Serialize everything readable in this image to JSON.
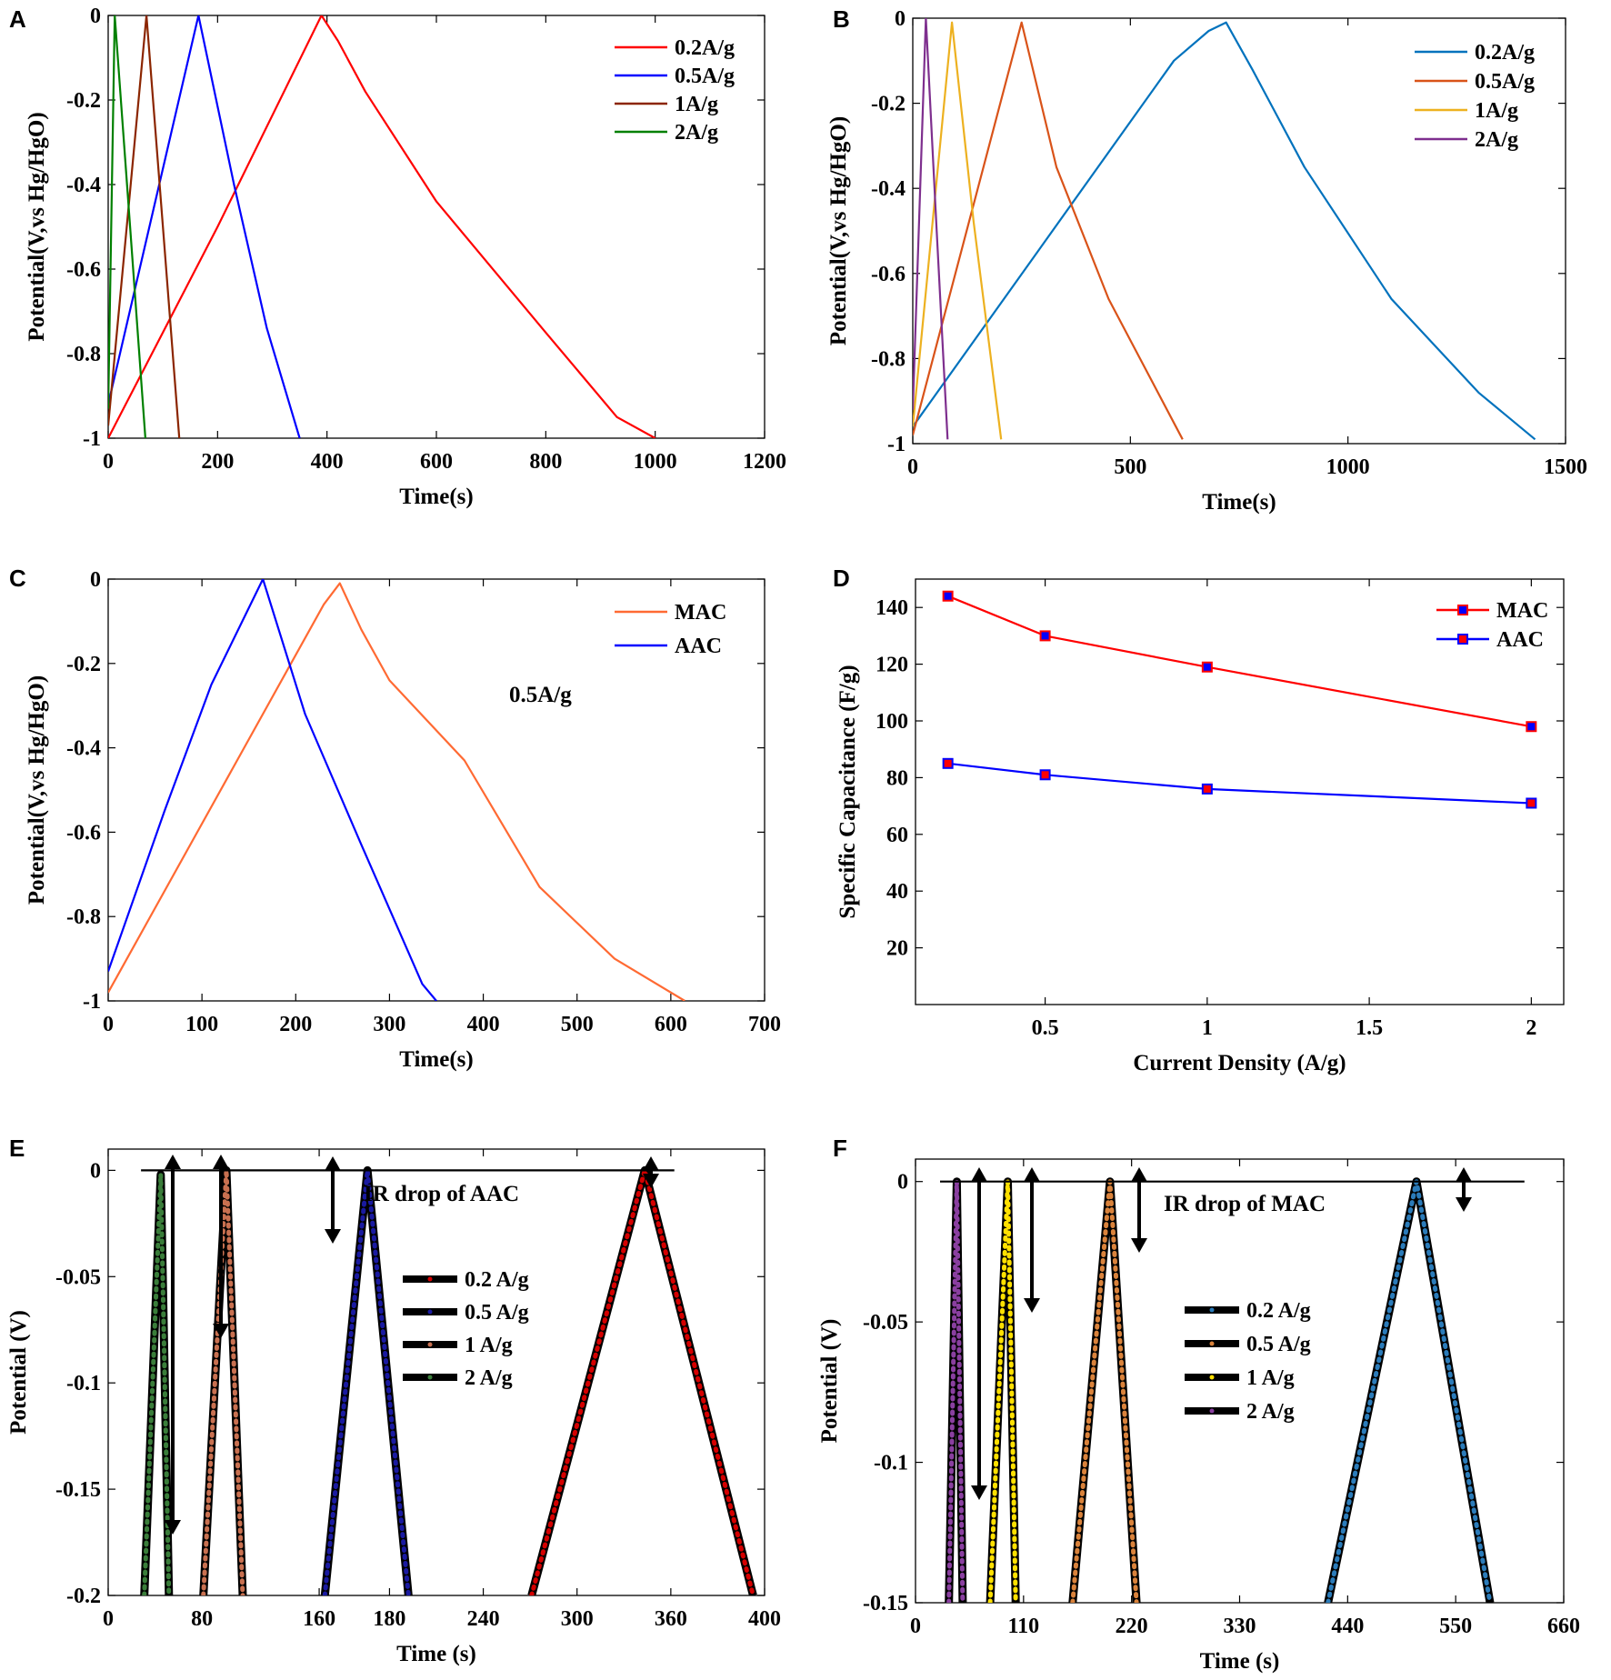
{
  "chart_data": [
    {
      "panel": "A",
      "type": "line",
      "xlabel": "Time(s)",
      "ylabel": "Potential(V,vs Hg/HgO)",
      "xlim": [
        0,
        1200
      ],
      "ylim": [
        -1,
        0
      ],
      "xticks": [
        0,
        200,
        400,
        600,
        800,
        1000,
        1200
      ],
      "yticks": [
        0,
        -0.2,
        -0.4,
        -0.6,
        -0.8,
        -1
      ],
      "xtick_labels": [
        "0",
        "200",
        "400",
        "600",
        "800",
        "1000",
        "1200"
      ],
      "ytick_labels": [
        "0",
        "-0.2",
        "-0.4",
        "-0.6",
        "-0.8",
        "-1"
      ],
      "legend_position": "top-right",
      "series": [
        {
          "name": "0.2A/g",
          "color": "#ff0000",
          "points": [
            [
              0,
              -1
            ],
            [
              200,
              -0.5
            ],
            [
              390,
              0
            ],
            [
              420,
              -0.06
            ],
            [
              470,
              -0.18
            ],
            [
              600,
              -0.44
            ],
            [
              800,
              -0.75
            ],
            [
              930,
              -0.95
            ],
            [
              1000,
              -1
            ]
          ]
        },
        {
          "name": "0.5A/g",
          "color": "#0000ff",
          "points": [
            [
              0,
              -0.92
            ],
            [
              165,
              0
            ],
            [
              230,
              -0.4
            ],
            [
              290,
              -0.74
            ],
            [
              350,
              -1
            ]
          ]
        },
        {
          "name": "1A/g",
          "color": "#8b2500",
          "points": [
            [
              0,
              -0.97
            ],
            [
              70,
              0
            ],
            [
              100,
              -0.5
            ],
            [
              130,
              -1
            ]
          ]
        },
        {
          "name": "2A/g",
          "color": "#008000",
          "points": [
            [
              0,
              -0.93
            ],
            [
              12,
              0
            ],
            [
              40,
              -0.5
            ],
            [
              68,
              -1
            ]
          ]
        }
      ]
    },
    {
      "panel": "B",
      "type": "line",
      "xlabel": "Time(s)",
      "ylabel": "Potential(V,vs Hg/HgO)",
      "xlim": [
        0,
        1500
      ],
      "ylim": [
        -1,
        0
      ],
      "xticks": [
        0,
        500,
        1000,
        1500
      ],
      "yticks": [
        0,
        -0.2,
        -0.4,
        -0.6,
        -0.8,
        -1
      ],
      "xtick_labels": [
        "0",
        "500",
        "1000",
        "1500"
      ],
      "ytick_labels": [
        "0",
        "-0.2",
        "-0.4",
        "-0.6",
        "-0.8",
        "-1"
      ],
      "legend_position": "top-right",
      "series": [
        {
          "name": "0.2A/g",
          "color": "#0072bd",
          "points": [
            [
              0,
              -0.96
            ],
            [
              600,
              -0.1
            ],
            [
              680,
              -0.03
            ],
            [
              720,
              -0.01
            ],
            [
              780,
              -0.12
            ],
            [
              900,
              -0.35
            ],
            [
              1100,
              -0.66
            ],
            [
              1300,
              -0.88
            ],
            [
              1430,
              -0.99
            ]
          ]
        },
        {
          "name": "0.5A/g",
          "color": "#d95319",
          "points": [
            [
              0,
              -0.98
            ],
            [
              250,
              -0.01
            ],
            [
              330,
              -0.35
            ],
            [
              450,
              -0.66
            ],
            [
              620,
              -0.99
            ]
          ]
        },
        {
          "name": "1A/g",
          "color": "#edb120",
          "points": [
            [
              0,
              -0.96
            ],
            [
              90,
              -0.01
            ],
            [
              140,
              -0.48
            ],
            [
              203,
              -0.99
            ]
          ]
        },
        {
          "name": "2A/g",
          "color": "#7e2f8e",
          "points": [
            [
              0,
              -0.92
            ],
            [
              30,
              0
            ],
            [
              55,
              -0.5
            ],
            [
              80,
              -0.99
            ]
          ]
        }
      ]
    },
    {
      "panel": "C",
      "type": "line",
      "xlabel": "Time(s)",
      "ylabel": "Potential(V,vs Hg/HgO)",
      "xlim": [
        0,
        700
      ],
      "ylim": [
        -1,
        0
      ],
      "xticks": [
        0,
        100,
        200,
        300,
        400,
        500,
        600,
        700
      ],
      "yticks": [
        0,
        -0.2,
        -0.4,
        -0.6,
        -0.8,
        -1
      ],
      "xtick_labels": [
        "0",
        "100",
        "200",
        "300",
        "400",
        "500",
        "600",
        "700"
      ],
      "ytick_labels": [
        "0",
        "-0.2",
        "-0.4",
        "-0.6",
        "-0.8",
        "-1"
      ],
      "legend_position": "top-right",
      "annotation": "0.5A/g",
      "series": [
        {
          "name": "MAC",
          "color": "#ff6a33",
          "points": [
            [
              0,
              -0.98
            ],
            [
              230,
              -0.06
            ],
            [
              247,
              -0.01
            ],
            [
              270,
              -0.12
            ],
            [
              300,
              -0.24
            ],
            [
              380,
              -0.43
            ],
            [
              460,
              -0.73
            ],
            [
              540,
              -0.9
            ],
            [
              615,
              -1
            ]
          ]
        },
        {
          "name": "AAC",
          "color": "#0000ff",
          "points": [
            [
              0,
              -0.93
            ],
            [
              60,
              -0.55
            ],
            [
              110,
              -0.25
            ],
            [
              165,
              0
            ],
            [
              210,
              -0.32
            ],
            [
              270,
              -0.63
            ],
            [
              335,
              -0.96
            ],
            [
              350,
              -1
            ]
          ]
        }
      ]
    },
    {
      "panel": "D",
      "type": "line",
      "xlabel": "Current Density (A/g)",
      "ylabel": "Specific Capacitance (F/g)",
      "xlim": [
        0.1,
        2.1
      ],
      "ylim": [
        0,
        150
      ],
      "xticks": [
        0.5,
        1,
        1.5,
        2
      ],
      "yticks": [
        20,
        40,
        60,
        80,
        100,
        120,
        140
      ],
      "xtick_labels": [
        "0.5",
        "1",
        "1.5",
        "2"
      ],
      "ytick_labels": [
        "20",
        "40",
        "60",
        "80",
        "100",
        "120",
        "140"
      ],
      "legend_position": "top-right",
      "x": [
        0.2,
        0.5,
        1,
        2
      ],
      "series": [
        {
          "name": "MAC",
          "color": "#ff0000",
          "marker_fill": "#0000ff",
          "values": [
            144,
            130,
            119,
            98
          ]
        },
        {
          "name": "AAC",
          "color": "#0000ff",
          "marker_fill": "#ff0000",
          "values": [
            85,
            81,
            76,
            71
          ]
        }
      ]
    },
    {
      "panel": "E",
      "type": "line",
      "xlabel": "Time (s)",
      "ylabel": "Potential (V)",
      "xlim": [
        0,
        400
      ],
      "ylim": [
        -0.2,
        0.01
      ],
      "xticks": [
        0,
        66.67,
        133.33,
        200,
        266.67,
        333.33,
        400
      ],
      "yticks": [
        0,
        -0.05,
        -0.1,
        -0.15,
        -0.2
      ],
      "xtick_labels": [
        "0",
        "80",
        "160",
        "180",
        "240",
        "300",
        "360",
        "400"
      ],
      "xtick_positions": [
        0,
        57.14,
        128.57,
        171.43,
        228.57,
        285.71,
        342.86,
        400
      ],
      "ytick_labels": [
        "0",
        "-0.05",
        "-0.1",
        "-0.15",
        "-0.2"
      ],
      "legend_position": "center",
      "annotation": "IR drop of AAC",
      "series": [
        {
          "name": "0.2 A/g",
          "color": "#d40000",
          "points": [
            [
              258,
              -0.2
            ],
            [
              327,
              0
            ],
            [
              393,
              -0.2
            ]
          ]
        },
        {
          "name": "0.5 A/g",
          "color": "#1a1aa0",
          "points": [
            [
              132,
              -0.2
            ],
            [
              158,
              0
            ],
            [
              183,
              -0.2
            ]
          ]
        },
        {
          "name": "1 A/g",
          "color": "#c87050",
          "points": [
            [
              58,
              -0.2
            ],
            [
              72,
              0
            ],
            [
              82,
              -0.2
            ]
          ]
        },
        {
          "name": "2 A/g",
          "color": "#3a7d3a",
          "points": [
            [
              22,
              -0.2
            ],
            [
              32,
              -0.002
            ],
            [
              37,
              -0.2
            ]
          ]
        }
      ]
    },
    {
      "panel": "F",
      "type": "line",
      "xlabel": "Time (s)",
      "ylabel": "Potential (V)",
      "xlim": [
        0,
        660
      ],
      "ylim": [
        -0.15,
        0.008
      ],
      "xticks": [
        0,
        110,
        220,
        330,
        440,
        550,
        660
      ],
      "yticks": [
        0,
        -0.05,
        -0.1,
        -0.15
      ],
      "xtick_labels": [
        "0",
        "110",
        "220",
        "330",
        "440",
        "550",
        "660"
      ],
      "ytick_labels": [
        "0",
        "-0.05",
        "-0.1",
        "-0.15"
      ],
      "legend_position": "center",
      "annotation": "IR drop of MAC",
      "series": [
        {
          "name": "0.2 A/g",
          "color": "#2b7bb9",
          "points": [
            [
              420,
              -0.15
            ],
            [
              510,
              0
            ],
            [
              585,
              -0.15
            ]
          ]
        },
        {
          "name": "0.5 A/g",
          "color": "#d9823b",
          "points": [
            [
              160,
              -0.15
            ],
            [
              198,
              0
            ],
            [
              225,
              -0.15
            ]
          ]
        },
        {
          "name": "1 A/g",
          "color": "#ffe000",
          "points": [
            [
              76,
              -0.15
            ],
            [
              94,
              0
            ],
            [
              102,
              -0.15
            ]
          ]
        },
        {
          "name": "2 A/g",
          "color": "#8a3fa0",
          "points": [
            [
              34,
              -0.15
            ],
            [
              42,
              0
            ],
            [
              48,
              -0.15
            ]
          ]
        }
      ]
    }
  ]
}
